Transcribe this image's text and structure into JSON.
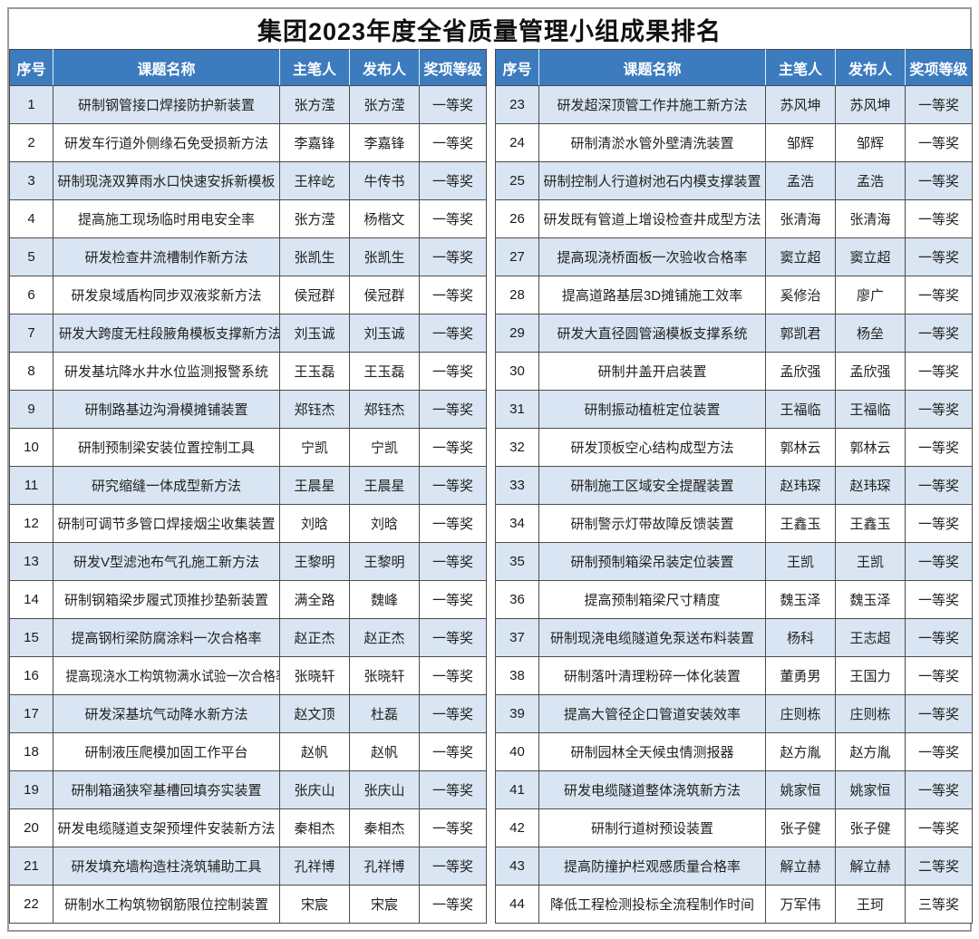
{
  "title": "集团2023年度全省质量管理小组成果排名",
  "columns": [
    "序号",
    "课题名称",
    "主笔人",
    "发布人",
    "奖项等级"
  ],
  "colors": {
    "header_bg": "#3c7cbe",
    "header_text": "#ffffff",
    "row_alt_bg": "#d9e5f2",
    "row_bg": "#ffffff",
    "inner_border": "#4c4c4c",
    "outer_border": "#9b9b9b"
  },
  "tables": [
    {
      "rows": [
        [
          "1",
          "研制钢管接口焊接防护新装置",
          "张方滢",
          "张方滢",
          "一等奖"
        ],
        [
          "2",
          "研发车行道外侧缘石免受损新方法",
          "李嘉锋",
          "李嘉锋",
          "一等奖"
        ],
        [
          "3",
          "研制现浇双箅雨水口快速安拆新模板",
          "王梓屹",
          "牛传书",
          "一等奖"
        ],
        [
          "4",
          "提高施工现场临时用电安全率",
          "张方滢",
          "杨楷文",
          "一等奖"
        ],
        [
          "5",
          "研发检查井流槽制作新方法",
          "张凯生",
          "张凯生",
          "一等奖"
        ],
        [
          "6",
          "研发泉域盾构同步双液浆新方法",
          "侯冠群",
          "侯冠群",
          "一等奖"
        ],
        [
          "7",
          "研发大跨度无柱段腋角模板支撑新方法",
          "刘玉诚",
          "刘玉诚",
          "一等奖"
        ],
        [
          "8",
          "研发基坑降水井水位监测报警系统",
          "王玉磊",
          "王玉磊",
          "一等奖"
        ],
        [
          "9",
          "研制路基边沟滑模摊铺装置",
          "郑钰杰",
          "郑钰杰",
          "一等奖"
        ],
        [
          "10",
          "研制预制梁安装位置控制工具",
          "宁凯",
          "宁凯",
          "一等奖"
        ],
        [
          "11",
          "研究缩缝一体成型新方法",
          "王晨星",
          "王晨星",
          "一等奖"
        ],
        [
          "12",
          "研制可调节多管口焊接烟尘收集装置",
          "刘晗",
          "刘晗",
          "一等奖"
        ],
        [
          "13",
          "研发V型滤池布气孔施工新方法",
          "王黎明",
          "王黎明",
          "一等奖"
        ],
        [
          "14",
          "研制钢箱梁步履式顶推抄垫新装置",
          "满全路",
          "魏峰",
          "一等奖"
        ],
        [
          "15",
          "提高钢桁梁防腐涂料一次合格率",
          "赵正杰",
          "赵正杰",
          "一等奖"
        ],
        [
          "16",
          "提高现浇水工构筑物满水试验一次合格率",
          "张晓轩",
          "张晓轩",
          "一等奖"
        ],
        [
          "17",
          "研发深基坑气动降水新方法",
          "赵文顶",
          "杜磊",
          "一等奖"
        ],
        [
          "18",
          "研制液压爬模加固工作平台",
          "赵帆",
          "赵帆",
          "一等奖"
        ],
        [
          "19",
          "研制箱涵狭窄基槽回填夯实装置",
          "张庆山",
          "张庆山",
          "一等奖"
        ],
        [
          "20",
          "研发电缆隧道支架预埋件安装新方法",
          "秦相杰",
          "秦相杰",
          "一等奖"
        ],
        [
          "21",
          "研发填充墙构造柱浇筑辅助工具",
          "孔祥博",
          "孔祥博",
          "一等奖"
        ],
        [
          "22",
          "研制水工构筑物钢筋限位控制装置",
          "宋宸",
          "宋宸",
          "一等奖"
        ]
      ]
    },
    {
      "rows": [
        [
          "23",
          "研发超深顶管工作井施工新方法",
          "苏风坤",
          "苏风坤",
          "一等奖"
        ],
        [
          "24",
          "研制清淤水管外壁清洗装置",
          "邹辉",
          "邹辉",
          "一等奖"
        ],
        [
          "25",
          "研制控制人行道树池石内模支撑装置",
          "孟浩",
          "孟浩",
          "一等奖"
        ],
        [
          "26",
          "研发既有管道上增设检查井成型方法",
          "张清海",
          "张清海",
          "一等奖"
        ],
        [
          "27",
          "提高现浇桥面板一次验收合格率",
          "窦立超",
          "窦立超",
          "一等奖"
        ],
        [
          "28",
          "提高道路基层3D摊铺施工效率",
          "奚修治",
          "廖广",
          "一等奖"
        ],
        [
          "29",
          "研发大直径圆管涵模板支撑系统",
          "郭凯君",
          "杨垒",
          "一等奖"
        ],
        [
          "30",
          "研制井盖开启装置",
          "孟欣强",
          "孟欣强",
          "一等奖"
        ],
        [
          "31",
          "研制振动植桩定位装置",
          "王福临",
          "王福临",
          "一等奖"
        ],
        [
          "32",
          "研发顶板空心结构成型方法",
          "郭林云",
          "郭林云",
          "一等奖"
        ],
        [
          "33",
          "研制施工区域安全提醒装置",
          "赵玮琛",
          "赵玮琛",
          "一等奖"
        ],
        [
          "34",
          "研制警示灯带故障反馈装置",
          "王鑫玉",
          "王鑫玉",
          "一等奖"
        ],
        [
          "35",
          "研制预制箱梁吊装定位装置",
          "王凯",
          "王凯",
          "一等奖"
        ],
        [
          "36",
          "提高预制箱梁尺寸精度",
          "魏玉泽",
          "魏玉泽",
          "一等奖"
        ],
        [
          "37",
          "研制现浇电缆隧道免泵送布料装置",
          "杨科",
          "王志超",
          "一等奖"
        ],
        [
          "38",
          "研制落叶清理粉碎一体化装置",
          "董勇男",
          "王国力",
          "一等奖"
        ],
        [
          "39",
          "提高大管径企口管道安装效率",
          "庄则栋",
          "庄则栋",
          "一等奖"
        ],
        [
          "40",
          "研制园林全天候虫情测报器",
          "赵方胤",
          "赵方胤",
          "一等奖"
        ],
        [
          "41",
          "研发电缆隧道整体浇筑新方法",
          "姚家恒",
          "姚家恒",
          "一等奖"
        ],
        [
          "42",
          "研制行道树预设装置",
          "张子健",
          "张子健",
          "一等奖"
        ],
        [
          "43",
          "提高防撞护栏观感质量合格率",
          "解立赫",
          "解立赫",
          "二等奖"
        ],
        [
          "44",
          "降低工程检测投标全流程制作时间",
          "万军伟",
          "王珂",
          "三等奖"
        ]
      ]
    }
  ]
}
